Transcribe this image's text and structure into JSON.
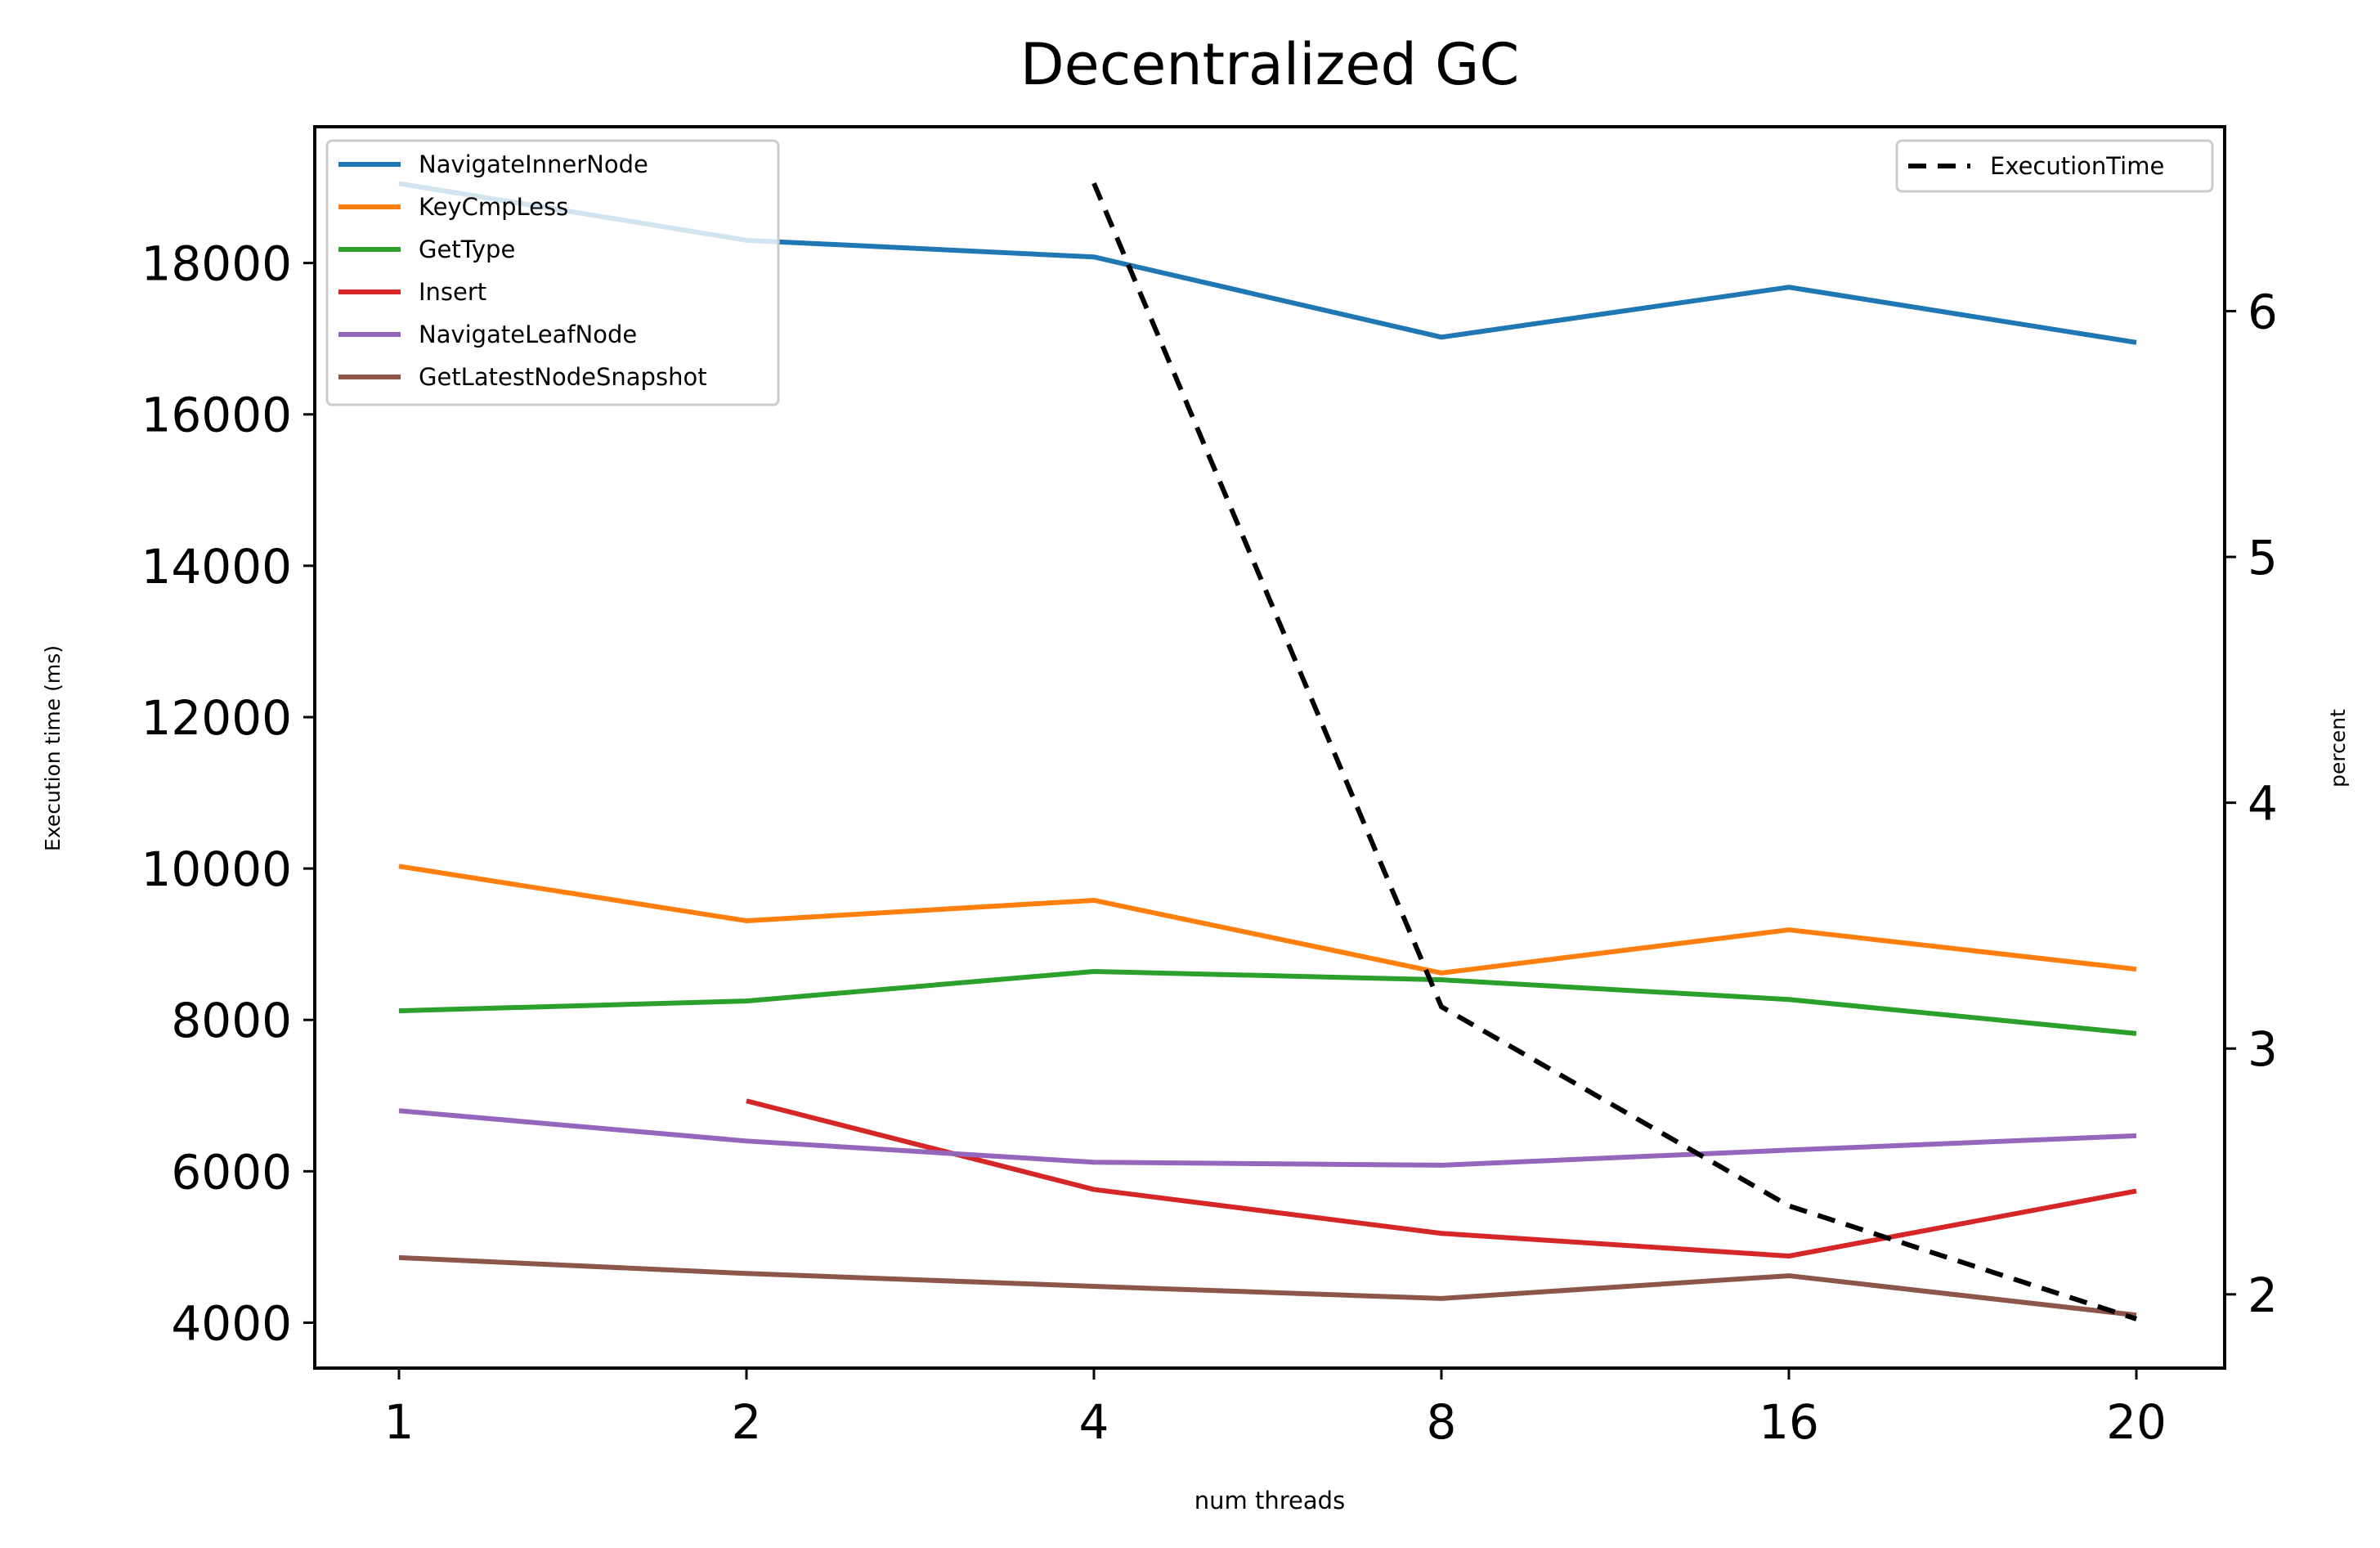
{
  "chart_data": {
    "type": "line",
    "title": "Decentralized GC",
    "xlabel": "num threads",
    "ylabel": "Execution time (ms)",
    "ylabel_color": "#0000ff",
    "y2label": "percent",
    "y2label_color": "#008000",
    "categories": [
      "1",
      "2",
      "4",
      "8",
      "16",
      "20"
    ],
    "ylim": [
      3400,
      19800
    ],
    "y2lim": [
      1.7,
      6.75
    ],
    "yticks": [
      4000,
      6000,
      8000,
      10000,
      12000,
      14000,
      16000,
      18000
    ],
    "y2ticks": [
      2,
      3,
      4,
      5,
      6
    ],
    "grid": false,
    "legend_position": "upper-left",
    "legend2_position": "upper-right",
    "series": [
      {
        "name": "NavigateInnerNode",
        "color": "#1f77b4",
        "values": [
          19050,
          18300,
          18080,
          17020,
          17680,
          16950
        ]
      },
      {
        "name": "KeyCmpLess",
        "color": "#ff7f0e",
        "values": [
          10030,
          9310,
          9580,
          8620,
          9190,
          8670
        ]
      },
      {
        "name": "GetType",
        "color": "#2ca02c",
        "values": [
          8120,
          8250,
          8640,
          8530,
          8270,
          7820
        ]
      },
      {
        "name": "Insert",
        "color": "#d62728",
        "values": [
          null,
          6930,
          5760,
          5180,
          4880,
          5740
        ]
      },
      {
        "name": "NavigateLeafNode",
        "color": "#9467bd",
        "values": [
          6800,
          6400,
          6120,
          6080,
          6280,
          6470
        ]
      },
      {
        "name": "GetLatestNodeSnapshot",
        "color": "#8c564b",
        "values": [
          4860,
          4650,
          4480,
          4320,
          4620,
          4100
        ]
      }
    ],
    "secondary_series": [
      {
        "name": "ExecutionTime",
        "color": "#000000",
        "dashed": true,
        "values": [
          null,
          null,
          6.52,
          3.17,
          2.36,
          1.9
        ]
      }
    ]
  }
}
